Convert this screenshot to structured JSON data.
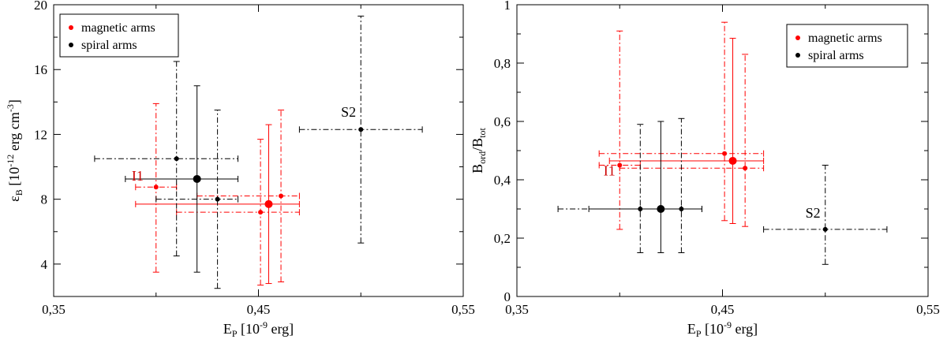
{
  "chart_data": [
    {
      "type": "scatter",
      "title": "",
      "xlabel": {
        "main": "E",
        "sub": "P",
        "rest": " [10",
        "sup": "-9",
        "tail": " erg]"
      },
      "ylabel": {
        "main": "ε",
        "sub": "B",
        "rest": " [10",
        "sup": "-12",
        "tail": " erg cm",
        "sup2": "-3",
        "end": "]"
      },
      "xlim": [
        0.35,
        0.55
      ],
      "ylim": [
        2,
        20
      ],
      "x_ticks": [
        {
          "value": 0.35,
          "label": "0,35"
        },
        {
          "value": 0.45,
          "label": "0,45"
        },
        {
          "value": 0.55,
          "label": "0,55"
        }
      ],
      "y_ticks": [
        {
          "value": 4,
          "label": "4"
        },
        {
          "value": 8,
          "label": "8"
        },
        {
          "value": 12,
          "label": "12"
        },
        {
          "value": 16,
          "label": "16"
        },
        {
          "value": 20,
          "label": "20"
        }
      ],
      "legend": {
        "position": "top-left",
        "items": [
          {
            "label": "magnetic arms",
            "color": "#ff0000"
          },
          {
            "label": "spiral arms",
            "color": "#000000"
          }
        ]
      },
      "series": [
        {
          "name": "magnetic arms",
          "color": "#ff0000",
          "points": [
            {
              "x": 0.4,
              "y": 8.75,
              "xerr": [
                0.01,
                0.01
              ],
              "yerr": [
                5.25,
                5.15
              ],
              "style": "dashdot",
              "size": "small"
            },
            {
              "x": 0.451,
              "y": 7.2,
              "xerr": [
                0.041,
                0.019
              ],
              "yerr": [
                4.5,
                4.5
              ],
              "style": "dashdot",
              "size": "small"
            },
            {
              "x": 0.461,
              "y": 8.2,
              "xerr": [
                0.041,
                0.009
              ],
              "yerr": [
                5.3,
                5.3
              ],
              "style": "dashdot",
              "size": "small"
            },
            {
              "x": 0.455,
              "y": 7.7,
              "xerr": [
                0.065,
                0.015
              ],
              "yerr": [
                4.9,
                4.9
              ],
              "style": "solid",
              "size": "large"
            }
          ]
        },
        {
          "name": "spiral arms",
          "color": "#000000",
          "points": [
            {
              "x": 0.41,
              "y": 10.5,
              "xerr": [
                0.04,
                0.03
              ],
              "yerr": [
                6.0,
                6.0
              ],
              "style": "dashdot",
              "size": "small"
            },
            {
              "x": 0.43,
              "y": 8.0,
              "xerr": [
                0.03,
                0.01
              ],
              "yerr": [
                5.5,
                5.5
              ],
              "style": "dashdot",
              "size": "small"
            },
            {
              "x": 0.5,
              "y": 12.3,
              "xerr": [
                0.03,
                0.03
              ],
              "yerr": [
                7.0,
                7.0
              ],
              "style": "dashdot",
              "size": "small"
            },
            {
              "x": 0.42,
              "y": 9.25,
              "xerr": [
                0.035,
                0.02
              ],
              "yerr": [
                5.75,
                5.75
              ],
              "style": "solid",
              "size": "large"
            }
          ]
        }
      ],
      "annotations": [
        {
          "text": "I1",
          "x": 0.391,
          "y": 9.15,
          "color": "#cc0000"
        },
        {
          "text": "S2",
          "x": 0.494,
          "y": 13.1,
          "color": "#000000"
        }
      ]
    },
    {
      "type": "scatter",
      "title": "",
      "xlabel": {
        "main": "E",
        "sub": "P",
        "rest": " [10",
        "sup": "-9",
        "tail": " erg]"
      },
      "ylabel": {
        "main": "B",
        "sub": "ord",
        "mid": "/B",
        "sub2": "tot"
      },
      "xlim": [
        0.35,
        0.55
      ],
      "ylim": [
        0,
        1
      ],
      "x_ticks": [
        {
          "value": 0.35,
          "label": "0,35"
        },
        {
          "value": 0.45,
          "label": "0,45"
        },
        {
          "value": 0.55,
          "label": "0,55"
        }
      ],
      "y_ticks": [
        {
          "value": 0,
          "label": "0"
        },
        {
          "value": 0.2,
          "label": "0,2"
        },
        {
          "value": 0.4,
          "label": "0,4"
        },
        {
          "value": 0.6,
          "label": "0,6"
        },
        {
          "value": 0.8,
          "label": "0,8"
        },
        {
          "value": 1.0,
          "label": "1"
        }
      ],
      "legend": {
        "position": "top-right",
        "items": [
          {
            "label": "magnetic arms",
            "color": "#ff0000"
          },
          {
            "label": "spiral arms",
            "color": "#000000"
          }
        ]
      },
      "series": [
        {
          "name": "magnetic arms",
          "color": "#ff0000",
          "points": [
            {
              "x": 0.4,
              "y": 0.45,
              "xerr": [
                0.01,
                0.01
              ],
              "yerr": [
                0.22,
                0.46
              ],
              "style": "dashdot",
              "size": "small"
            },
            {
              "x": 0.451,
              "y": 0.49,
              "xerr": [
                0.061,
                0.019
              ],
              "yerr": [
                0.23,
                0.45
              ],
              "style": "dashdot",
              "size": "small"
            },
            {
              "x": 0.461,
              "y": 0.44,
              "xerr": [
                0.061,
                0.009
              ],
              "yerr": [
                0.2,
                0.39
              ],
              "style": "dashdot",
              "size": "small"
            },
            {
              "x": 0.455,
              "y": 0.465,
              "xerr": [
                0.06,
                0.015
              ],
              "yerr": [
                0.215,
                0.42
              ],
              "style": "solid",
              "size": "large"
            }
          ]
        },
        {
          "name": "spiral arms",
          "color": "#000000",
          "points": [
            {
              "x": 0.41,
              "y": 0.3,
              "xerr": [
                0.04,
                0.0
              ],
              "yerr": [
                0.15,
                0.29
              ],
              "style": "dashdot",
              "size": "small"
            },
            {
              "x": 0.43,
              "y": 0.3,
              "xerr": [
                0.0,
                0.01
              ],
              "yerr": [
                0.15,
                0.31
              ],
              "style": "dashdot",
              "size": "small"
            },
            {
              "x": 0.5,
              "y": 0.23,
              "xerr": [
                0.03,
                0.03
              ],
              "yerr": [
                0.12,
                0.22
              ],
              "style": "dashdot",
              "size": "small"
            },
            {
              "x": 0.42,
              "y": 0.3,
              "xerr": [
                0.035,
                0.02
              ],
              "yerr": [
                0.15,
                0.3
              ],
              "style": "solid",
              "size": "large"
            }
          ]
        }
      ],
      "annotations": [
        {
          "text": "I1",
          "x": 0.395,
          "y": 0.415,
          "color": "#cc0000"
        },
        {
          "text": "S2",
          "x": 0.494,
          "y": 0.27,
          "color": "#000000"
        }
      ]
    }
  ]
}
